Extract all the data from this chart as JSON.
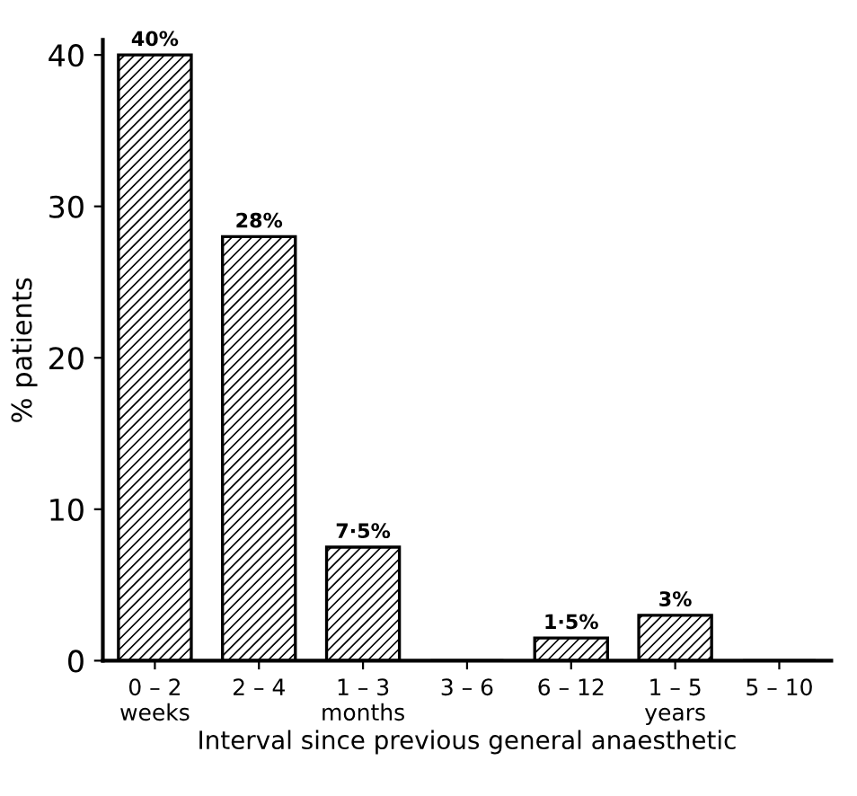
{
  "chart_data": {
    "type": "bar",
    "xlabel": "Interval since previous general anaesthetic",
    "ylabel": "% patients",
    "categories": [
      "0 – 2\nweeks",
      "2 – 4",
      "1 – 3\nmonths",
      "3 – 6",
      "6 – 12",
      "1 – 5\nyears",
      "5 – 10"
    ],
    "values": [
      40,
      28,
      7.5,
      0,
      1.5,
      3,
      0
    ],
    "value_labels": [
      "40%",
      "28%",
      "7·5%",
      null,
      "1·5%",
      "3%",
      null
    ],
    "color": "#000000",
    "ylim": [
      0,
      41
    ],
    "yticks": [
      0,
      10,
      20,
      30,
      40
    ],
    "grid": false,
    "legend": false
  }
}
